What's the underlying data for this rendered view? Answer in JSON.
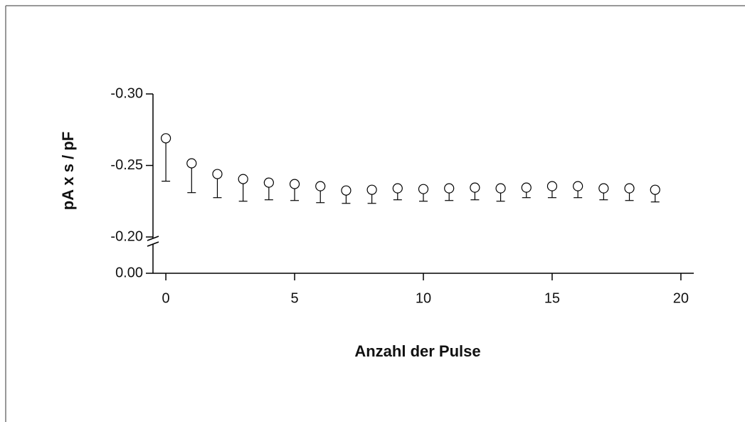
{
  "chart_data": {
    "type": "scatter",
    "xlabel": "Anzahl der Pulse",
    "ylabel": "pA x s / pF",
    "x": [
      0,
      1,
      2,
      3,
      4,
      5,
      6,
      7,
      8,
      9,
      10,
      11,
      12,
      13,
      14,
      15,
      16,
      17,
      18,
      19
    ],
    "series": [
      {
        "color": "#000000",
        "values": [
          -0.269,
          -0.2515,
          -0.244,
          -0.2405,
          -0.238,
          -0.237,
          -0.2355,
          -0.2325,
          -0.233,
          -0.234,
          -0.2335,
          -0.234,
          -0.2345,
          -0.234,
          -0.2345,
          -0.2355,
          -0.2355,
          -0.234,
          -0.234,
          -0.233
        ],
        "errors": [
          0.03,
          0.0205,
          0.0165,
          0.0155,
          0.012,
          0.0115,
          0.0115,
          0.009,
          0.0095,
          0.008,
          0.0085,
          0.0085,
          0.0085,
          0.009,
          0.007,
          0.008,
          0.008,
          0.008,
          0.0085,
          0.0085
        ]
      }
    ],
    "xlim": [
      -0.5,
      20.5
    ],
    "xticks": [
      0,
      5,
      10,
      15,
      20
    ],
    "ylim": [
      -0.3,
      0.0
    ],
    "yinverted": true,
    "ybreak": [
      -0.2,
      0.0
    ],
    "yticks": [
      {
        "value": -0.3,
        "label": "-0.30"
      },
      {
        "value": -0.25,
        "label": "-0.25"
      },
      {
        "value": -0.2,
        "label": "-0.20"
      },
      {
        "value": 0.0,
        "label": "0.00"
      }
    ]
  }
}
